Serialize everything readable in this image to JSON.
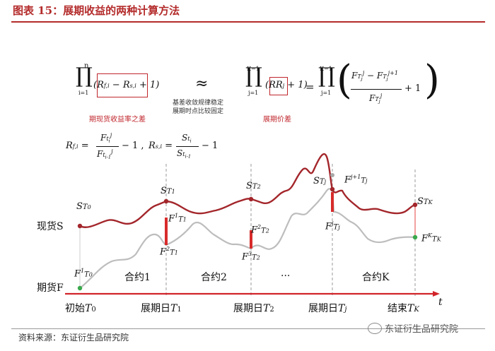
{
  "figure": {
    "title": "图表 15：展期收益的两种计算方法",
    "source": "资料来源：东证衍生品研究院",
    "watermark": "东证衍生品研究院"
  },
  "formula": {
    "product_upper": "n",
    "product_lower": "i=1",
    "spread_terms": "(R_{f,i} − R_{s,i} + 1)",
    "approx": "≈",
    "product2_upper": "K−1",
    "product2_lower": "j=1",
    "rr_term": "RR_j",
    "plus_one": "+ 1)",
    "equals": "=",
    "note_spread": "期现货收益率之差",
    "note_rr": "展期价差",
    "note_middle_1": "基差收敛规律稳定",
    "note_middle_2": "展期时点比较固定",
    "def_rf": "R_{f,i} = F^j_{t_i} / F^j_{t_{i-1}} − 1",
    "def_rs": "R_{s,i} = S_{t_i} / S_{t_{i-1}} − 1"
  },
  "diagram": {
    "y_label_spot": "现货S",
    "y_label_futures": "期货F",
    "axis_t": "t",
    "time_points": [
      {
        "id": "start",
        "label": "初始",
        "sym": "T",
        "sub": "0"
      },
      {
        "id": "r1",
        "label": "展期日",
        "sym": "T",
        "sub": "1"
      },
      {
        "id": "r2",
        "label": "展期日",
        "sym": "T",
        "sub": "2"
      },
      {
        "id": "rj",
        "label": "展期日",
        "sym": "T",
        "sub": "j"
      },
      {
        "id": "end",
        "label": "结束",
        "sym": "T",
        "sub": "K"
      }
    ],
    "contracts": [
      "合约1",
      "合约2",
      "···",
      "合约K"
    ],
    "point_labels": {
      "S0": {
        "main": "S",
        "sub": "T",
        "subsub": "0"
      },
      "S1": {
        "main": "S",
        "sub": "T",
        "subsub": "1"
      },
      "S2": {
        "main": "S",
        "sub": "T",
        "subsub": "2"
      },
      "Sj": {
        "main": "S",
        "sub": "T",
        "subsub": "j"
      },
      "SK": {
        "main": "S",
        "sub": "T",
        "subsub": "K"
      },
      "F0": {
        "main": "F",
        "sup": "1",
        "sub": "T",
        "subsub": "0"
      },
      "F1a": {
        "main": "F",
        "sup": "1",
        "sub": "T",
        "subsub": "1"
      },
      "F1b": {
        "main": "F",
        "sup": "2",
        "sub": "T",
        "subsub": "1"
      },
      "F2a": {
        "main": "F",
        "sup": "2",
        "sub": "T",
        "subsub": "2"
      },
      "F2b": {
        "main": "F",
        "sup": "3",
        "sub": "T",
        "subsub": "2"
      },
      "Fja": {
        "main": "F",
        "sup": "j+1",
        "sub": "T",
        "subsub": "j"
      },
      "Fjb": {
        "main": "F",
        "sup": "j",
        "sub": "T",
        "subsub": "j"
      },
      "FK": {
        "main": "F",
        "sup": "K",
        "sub": "T",
        "subsub": "K"
      }
    },
    "colors": {
      "spot": "#a3262b",
      "futures": "#bdbdbd",
      "axis": "#d1242a",
      "marker_green": "#3aa84b",
      "bar": "#d82b2b"
    }
  }
}
